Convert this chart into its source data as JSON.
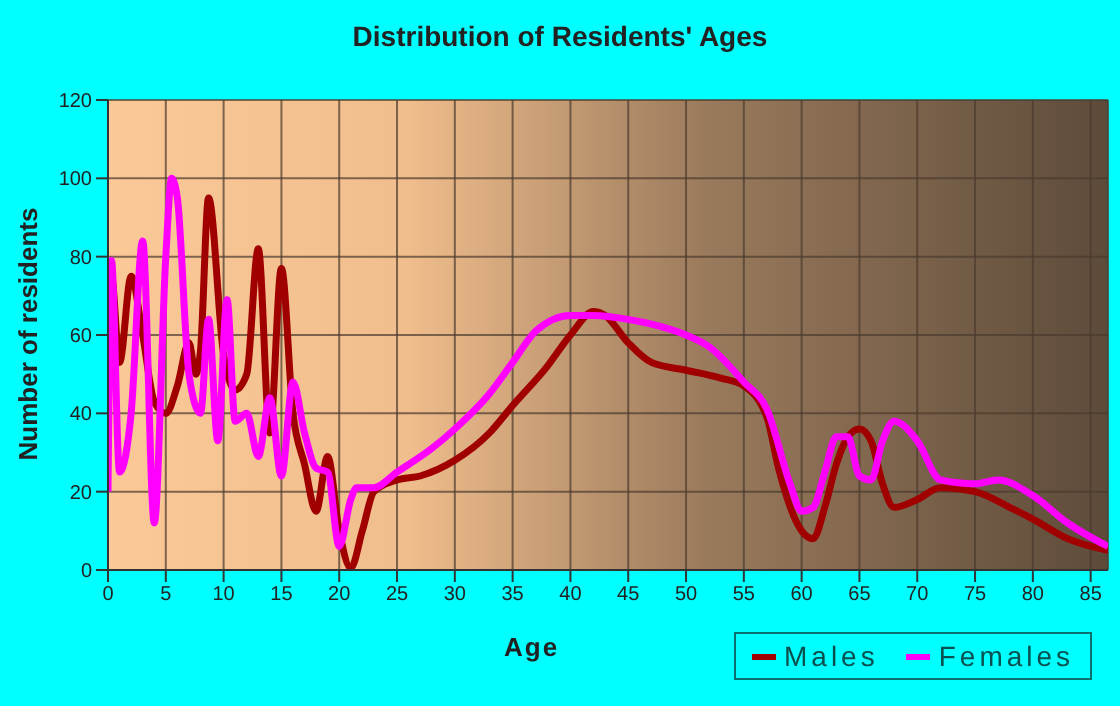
{
  "chart_data": {
    "type": "line",
    "title": "Distribution of Residents' Ages",
    "xlabel": "Age",
    "ylabel": "Number of residents",
    "xlim": [
      0,
      86.5
    ],
    "xticks": [
      0,
      5,
      10,
      15,
      20,
      25,
      30,
      35,
      40,
      45,
      50,
      55,
      60,
      65,
      70,
      75,
      80,
      85
    ],
    "ylim": [
      0,
      120
    ],
    "yticks": [
      0,
      20,
      40,
      60,
      80,
      100,
      120
    ],
    "grid": true,
    "legend": "bottom right",
    "marker": "none",
    "series": [
      {
        "name": "Males",
        "color": "#a00000",
        "x": [
          0,
          0.3,
          1,
          2,
          3,
          4,
          5,
          6,
          7,
          7.6,
          8,
          8.7,
          10,
          11,
          12,
          13,
          14,
          15,
          16,
          17,
          18,
          19,
          20,
          21,
          22,
          23,
          25,
          27,
          30,
          33,
          35,
          38,
          40,
          42,
          43,
          45,
          47,
          50,
          53,
          55,
          57,
          58,
          60,
          61,
          62,
          63,
          64,
          65,
          66,
          67,
          68,
          70,
          72,
          75,
          78,
          80,
          83,
          86.5
        ],
        "values": [
          44,
          75,
          53,
          75,
          60,
          43,
          40,
          47,
          58,
          50,
          56,
          95,
          55,
          46,
          50,
          82,
          35,
          77,
          40,
          27,
          15,
          29,
          10,
          0.5,
          10,
          20,
          23,
          24,
          28,
          35,
          42,
          52,
          60,
          66,
          65,
          58,
          53,
          51,
          49,
          47,
          39,
          26,
          10,
          8,
          16,
          27,
          34,
          36,
          33,
          22,
          16,
          18,
          21,
          20,
          16,
          13,
          8,
          5
        ]
      },
      {
        "name": "Females",
        "color": "#ff00ff",
        "x": [
          0,
          0.3,
          1,
          2,
          3,
          4,
          5,
          5.5,
          6,
          7,
          8,
          8.7,
          9.5,
          10.3,
          11,
          12,
          13,
          14,
          15,
          16,
          17,
          18,
          19,
          20,
          21,
          21.5,
          23,
          25,
          28,
          30,
          33,
          35,
          37,
          40,
          42,
          45,
          48,
          50,
          52,
          55,
          57,
          59,
          60,
          61,
          62,
          63,
          64,
          65,
          66,
          67,
          68,
          70,
          72,
          75,
          77,
          80,
          83,
          86.5
        ],
        "values": [
          20,
          79,
          25,
          40,
          84,
          12,
          80,
          100,
          95,
          50,
          40,
          64,
          33,
          69,
          38,
          40,
          29,
          44,
          24,
          48,
          35,
          26,
          25,
          6,
          18,
          21,
          21,
          25,
          31,
          36,
          45,
          53,
          61,
          65,
          65,
          64,
          62,
          60,
          57,
          48,
          41,
          22,
          15,
          16,
          25,
          34,
          34,
          24,
          23,
          33,
          38,
          33,
          23,
          22,
          23,
          19,
          12,
          6
        ]
      }
    ]
  }
}
